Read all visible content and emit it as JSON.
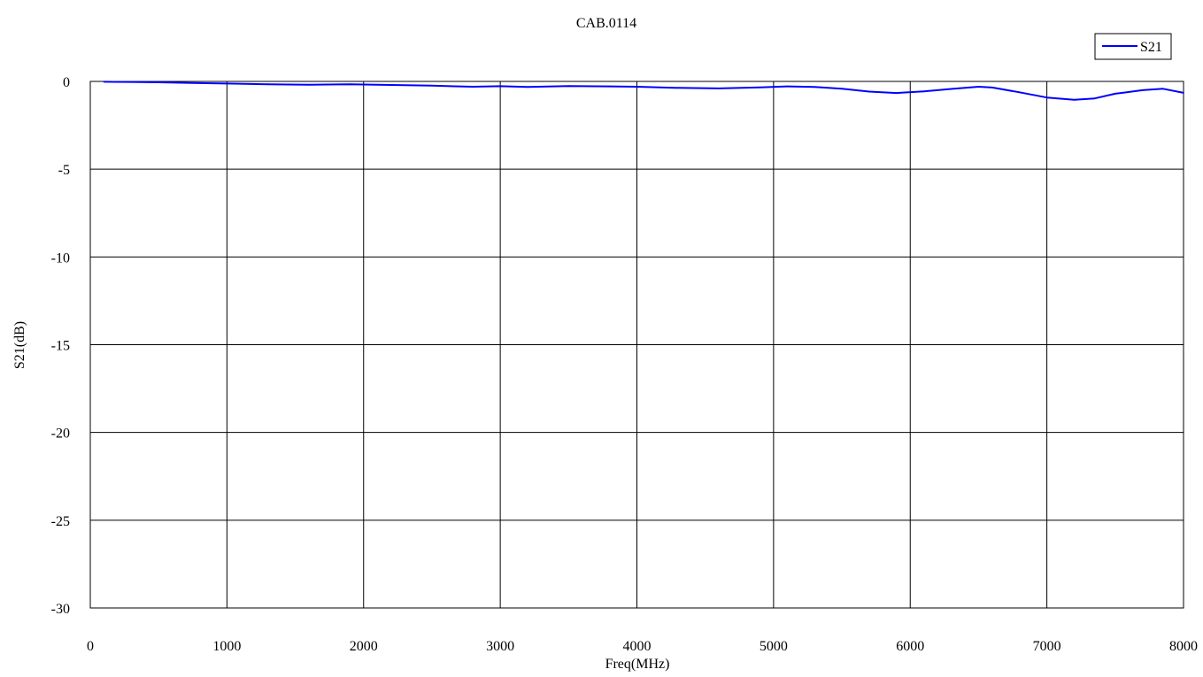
{
  "chart_data": {
    "type": "line",
    "title": "CAB.0114",
    "xlabel": "Freq(MHz)",
    "ylabel": "S21(dB)",
    "xlim": [
      0,
      8000
    ],
    "ylim": [
      -30,
      0
    ],
    "xticks": [
      0,
      1000,
      2000,
      3000,
      4000,
      5000,
      6000,
      7000,
      8000
    ],
    "yticks": [
      0,
      -5,
      -10,
      -15,
      -20,
      -25,
      -30
    ],
    "grid": true,
    "legend_position": "top-right",
    "series": [
      {
        "name": "S21",
        "color": "#0000ff",
        "x": [
          100,
          300,
          500,
          700,
          1000,
          1300,
          1600,
          1900,
          2200,
          2500,
          2800,
          3000,
          3200,
          3500,
          3800,
          4000,
          4300,
          4600,
          4900,
          5100,
          5300,
          5500,
          5700,
          5900,
          6100,
          6300,
          6500,
          6600,
          6800,
          7000,
          7200,
          7350,
          7500,
          7700,
          7850,
          8000
        ],
        "y": [
          -0.02,
          -0.03,
          -0.05,
          -0.08,
          -0.12,
          -0.16,
          -0.19,
          -0.16,
          -0.2,
          -0.24,
          -0.3,
          -0.27,
          -0.32,
          -0.26,
          -0.28,
          -0.3,
          -0.37,
          -0.4,
          -0.34,
          -0.28,
          -0.32,
          -0.42,
          -0.58,
          -0.66,
          -0.57,
          -0.43,
          -0.3,
          -0.35,
          -0.62,
          -0.92,
          -1.05,
          -0.97,
          -0.7,
          -0.5,
          -0.42,
          -0.65
        ]
      }
    ]
  }
}
